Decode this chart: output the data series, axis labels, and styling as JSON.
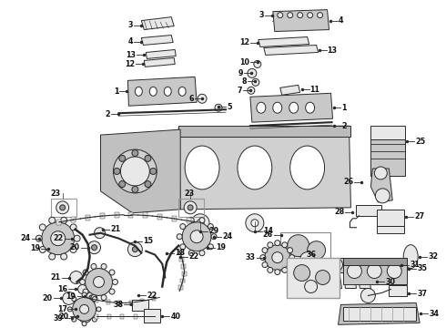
{
  "background_color": "#ffffff",
  "fig_width": 4.9,
  "fig_height": 3.6,
  "dpi": 100,
  "line_color": "#2a2a2a",
  "label_color": "#111111",
  "label_fontsize": 5.8,
  "parts_gray": "#c8c8c8",
  "parts_lgray": "#e8e8e8",
  "parts_dgray": "#999999"
}
